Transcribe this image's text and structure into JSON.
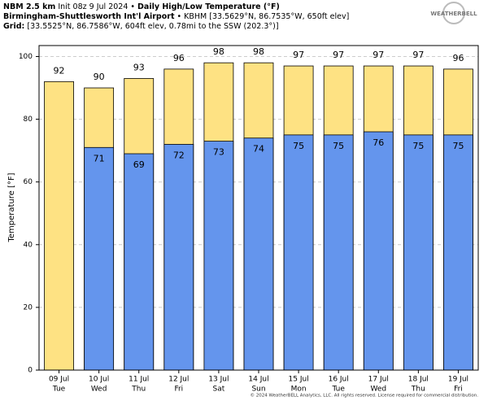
{
  "chart_data": {
    "type": "bar",
    "model": "NBM 2.5 km",
    "init": "Init 08z 9 Jul 2024",
    "separator": "•",
    "title": "Daily High/Low Temperature (°F)",
    "station": "Birmingham-Shuttlesworth Int'l Airport",
    "station_info": "KBHM [33.5629°N, 86.7535°W, 650ft elev]",
    "grid_label": "Grid:",
    "grid_info": "[33.5525°N, 86.7586°W, 604ft elev, 0.78mi to the SSW (202.3°)]",
    "logo": "WEATHERBELL",
    "credit": "© 2024 WeatherBELL Analytics, LLC. All rights reserved. License required for commercial distribution.",
    "y_label": "Temperature [°F]",
    "categories": [
      "09 Jul",
      "10 Jul",
      "11 Jul",
      "12 Jul",
      "13 Jul",
      "14 Jul",
      "15 Jul",
      "16 Jul",
      "17 Jul",
      "18 Jul",
      "19 Jul"
    ],
    "weekdays": [
      "Tue",
      "Wed",
      "Thu",
      "Fri",
      "Sat",
      "Sun",
      "Mon",
      "Tue",
      "Wed",
      "Thu",
      "Fri"
    ],
    "series": [
      {
        "color": "#fee283",
        "values": [
          92,
          90,
          93,
          96,
          98,
          98,
          97,
          97,
          97,
          97,
          96
        ]
      },
      {
        "color": "#6495ed",
        "values": [
          null,
          71,
          69,
          72,
          73,
          74,
          75,
          75,
          76,
          75,
          75
        ]
      }
    ],
    "ylim": [
      0,
      103.5
    ],
    "yticks": [
      0,
      20,
      40,
      60,
      80,
      100
    ],
    "grid": true
  }
}
